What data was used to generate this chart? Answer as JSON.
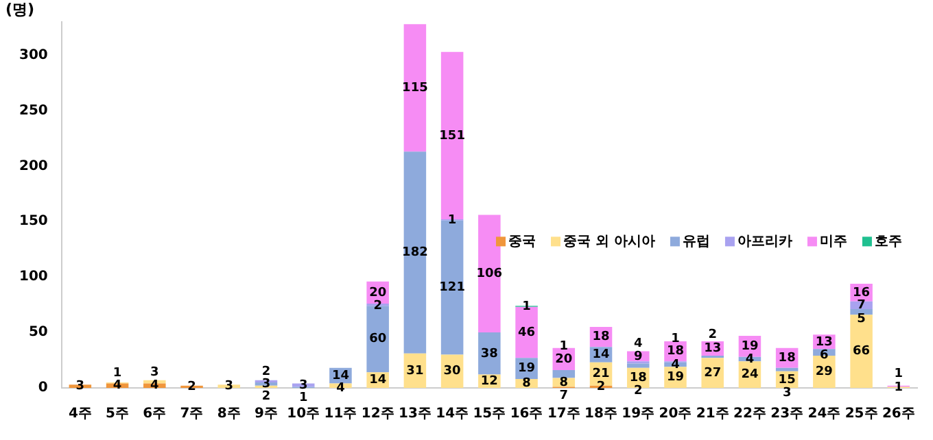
{
  "chart_data": {
    "type": "bar",
    "stacked": true,
    "ylabel": "(명)",
    "categories": [
      "4주",
      "5주",
      "6주",
      "7주",
      "8주",
      "9주",
      "10주",
      "11주",
      "12주",
      "13주",
      "14주",
      "15주",
      "16주",
      "17주",
      "18주",
      "19주",
      "20주",
      "21주",
      "22주",
      "23주",
      "24주",
      "25주",
      "26주"
    ],
    "series": [
      {
        "name": "중국",
        "color": "#f0963c",
        "values": [
          3,
          4,
          4,
          2,
          null,
          null,
          null,
          null,
          null,
          null,
          null,
          null,
          null,
          1,
          2,
          null,
          null,
          null,
          null,
          null,
          null,
          null,
          null
        ]
      },
      {
        "name": "중국 외 아시아",
        "color": "#ffe08c",
        "values": [
          null,
          1,
          3,
          null,
          3,
          2,
          null,
          4,
          14,
          31,
          30,
          12,
          8,
          8,
          21,
          18,
          19,
          27,
          24,
          15,
          29,
          66,
          1
        ]
      },
      {
        "name": "유럽",
        "color": "#8eaadc",
        "values": [
          null,
          null,
          null,
          null,
          null,
          3,
          1,
          14,
          60,
          182,
          121,
          38,
          19,
          7,
          14,
          4,
          4,
          2,
          4,
          3,
          6,
          5,
          null
        ]
      },
      {
        "name": "아프리카",
        "color": "#a9a2f0",
        "values": [
          null,
          null,
          null,
          null,
          null,
          2,
          3,
          null,
          2,
          null,
          1,
          null,
          null,
          null,
          null,
          2,
          1,
          null,
          null,
          null,
          null,
          7,
          null
        ]
      },
      {
        "name": "미주",
        "color": "#f68cf4",
        "values": [
          null,
          null,
          null,
          null,
          null,
          null,
          null,
          null,
          20,
          115,
          151,
          106,
          46,
          20,
          18,
          9,
          18,
          13,
          19,
          18,
          13,
          16,
          1
        ]
      },
      {
        "name": "호주",
        "color": "#20c090",
        "values": [
          null,
          null,
          null,
          null,
          null,
          null,
          null,
          null,
          null,
          null,
          null,
          null,
          1,
          null,
          null,
          null,
          null,
          null,
          null,
          null,
          null,
          null,
          null
        ]
      }
    ],
    "ylim": [
      0,
      330
    ],
    "yticks": [
      0,
      50,
      100,
      150,
      200,
      250,
      300
    ],
    "grid": false,
    "legend": "right",
    "data_labels": true
  }
}
